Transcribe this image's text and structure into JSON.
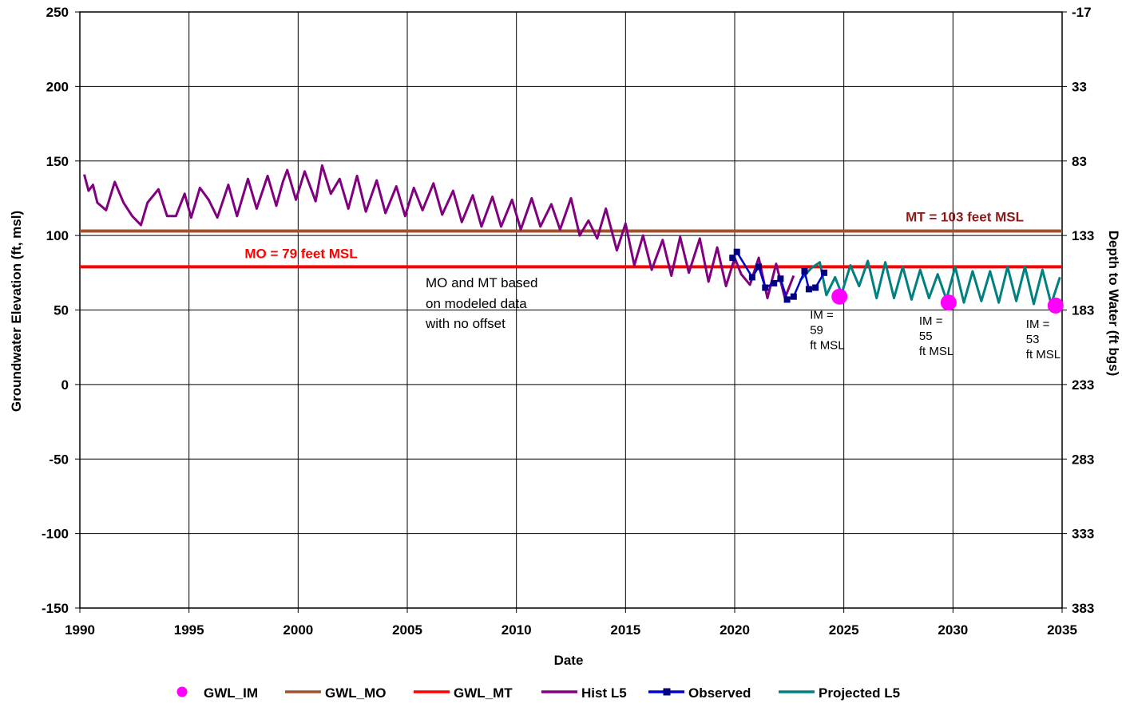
{
  "chart_data": {
    "type": "line",
    "xlabel": "Date",
    "ylabel": "Groundwater Elevation (ft, msl)",
    "y2label": "Depth to Water (ft bgs)",
    "xlim": [
      1990,
      2035
    ],
    "ylim": [
      -150,
      250
    ],
    "x_ticks": [
      "1990",
      "1995",
      "2000",
      "2005",
      "2010",
      "2015",
      "2020",
      "2025",
      "2030",
      "2035"
    ],
    "y_ticks": [
      "250",
      "200",
      "150",
      "100",
      "50",
      "0",
      "-50",
      "-100",
      "-150"
    ],
    "y2_ticks": [
      "-17",
      "33",
      "83",
      "133",
      "183",
      "233",
      "283",
      "333",
      "383"
    ],
    "grid": true,
    "legend_position": "bottom",
    "reference_lines": {
      "mt": {
        "name": "GWL_MT",
        "value": 103,
        "label": "MT = 103 feet MSL",
        "line_color": "#a0522d",
        "label_color": "#8b1a1a"
      },
      "mo": {
        "name": "GWL_MO",
        "value": 79,
        "label": "MO = 79 feet MSL",
        "line_color": "#ff0000",
        "label_color": "#ff0000"
      }
    },
    "annotation": {
      "lines": [
        "MO and MT based",
        "on modeled data",
        "with no offset"
      ]
    },
    "series": [
      {
        "name": "Hist L5",
        "color": "#800080",
        "points": [
          [
            1990.2,
            141
          ],
          [
            1990.4,
            130
          ],
          [
            1990.6,
            134
          ],
          [
            1990.8,
            122
          ],
          [
            1991.2,
            117
          ],
          [
            1991.6,
            136
          ],
          [
            1992.0,
            122
          ],
          [
            1992.4,
            113
          ],
          [
            1992.8,
            107
          ],
          [
            1993.1,
            122
          ],
          [
            1993.6,
            131
          ],
          [
            1994.0,
            113
          ],
          [
            1994.4,
            113
          ],
          [
            1994.8,
            128
          ],
          [
            1995.1,
            112
          ],
          [
            1995.5,
            132
          ],
          [
            1995.9,
            124
          ],
          [
            1996.3,
            112
          ],
          [
            1996.8,
            134
          ],
          [
            1997.2,
            113
          ],
          [
            1997.7,
            138
          ],
          [
            1998.1,
            118
          ],
          [
            1998.6,
            140
          ],
          [
            1999.0,
            120
          ],
          [
            1999.3,
            136
          ],
          [
            1999.5,
            144
          ],
          [
            1999.9,
            124
          ],
          [
            2000.3,
            143
          ],
          [
            2000.8,
            123
          ],
          [
            2001.1,
            147
          ],
          [
            2001.5,
            128
          ],
          [
            2001.9,
            138
          ],
          [
            2002.3,
            118
          ],
          [
            2002.7,
            140
          ],
          [
            2003.1,
            116
          ],
          [
            2003.6,
            137
          ],
          [
            2004.0,
            115
          ],
          [
            2004.5,
            133
          ],
          [
            2004.9,
            113
          ],
          [
            2005.3,
            132
          ],
          [
            2005.7,
            117
          ],
          [
            2006.2,
            135
          ],
          [
            2006.6,
            114
          ],
          [
            2007.1,
            130
          ],
          [
            2007.5,
            109
          ],
          [
            2008.0,
            127
          ],
          [
            2008.4,
            106
          ],
          [
            2008.9,
            126
          ],
          [
            2009.3,
            106
          ],
          [
            2009.8,
            124
          ],
          [
            2010.2,
            104
          ],
          [
            2010.7,
            125
          ],
          [
            2011.1,
            106
          ],
          [
            2011.6,
            121
          ],
          [
            2012.0,
            104
          ],
          [
            2012.5,
            125
          ],
          [
            2012.9,
            100
          ],
          [
            2013.3,
            110
          ],
          [
            2013.7,
            98
          ],
          [
            2014.1,
            118
          ],
          [
            2014.6,
            90
          ],
          [
            2015.0,
            108
          ],
          [
            2015.4,
            80
          ],
          [
            2015.8,
            100
          ],
          [
            2016.2,
            77
          ],
          [
            2016.7,
            97
          ],
          [
            2017.1,
            73
          ],
          [
            2017.5,
            99
          ],
          [
            2017.9,
            75
          ],
          [
            2018.4,
            98
          ],
          [
            2018.8,
            69
          ],
          [
            2019.2,
            92
          ],
          [
            2019.6,
            66
          ],
          [
            2020.0,
            85
          ],
          [
            2020.3,
            74
          ],
          [
            2020.7,
            67
          ],
          [
            2021.1,
            85
          ],
          [
            2021.5,
            58
          ],
          [
            2021.9,
            81
          ],
          [
            2022.3,
            58
          ],
          [
            2022.7,
            73
          ]
        ]
      },
      {
        "name": "Observed",
        "color": "#0000cd",
        "points": [
          [
            2019.9,
            85
          ],
          [
            2020.1,
            89
          ],
          [
            2020.8,
            72
          ],
          [
            2021.1,
            79
          ],
          [
            2021.4,
            65
          ],
          [
            2021.8,
            68
          ],
          [
            2022.1,
            71
          ],
          [
            2022.4,
            57
          ],
          [
            2022.7,
            59
          ],
          [
            2023.2,
            76
          ],
          [
            2023.4,
            64
          ],
          [
            2023.7,
            65
          ],
          [
            2024.1,
            75
          ]
        ]
      },
      {
        "name": "Projected L5",
        "color": "#008080",
        "points": [
          [
            2023.0,
            70
          ],
          [
            2023.5,
            78
          ],
          [
            2023.9,
            82
          ],
          [
            2024.2,
            60
          ],
          [
            2024.6,
            72
          ],
          [
            2024.9,
            61
          ],
          [
            2025.3,
            80
          ],
          [
            2025.7,
            66
          ],
          [
            2026.1,
            83
          ],
          [
            2026.5,
            58
          ],
          [
            2026.9,
            82
          ],
          [
            2027.3,
            58
          ],
          [
            2027.7,
            79
          ],
          [
            2028.1,
            57
          ],
          [
            2028.5,
            77
          ],
          [
            2028.9,
            58
          ],
          [
            2029.3,
            74
          ],
          [
            2029.7,
            57
          ],
          [
            2030.1,
            79
          ],
          [
            2030.5,
            55
          ],
          [
            2030.9,
            76
          ],
          [
            2031.3,
            56
          ],
          [
            2031.7,
            76
          ],
          [
            2032.1,
            55
          ],
          [
            2032.5,
            79
          ],
          [
            2032.9,
            56
          ],
          [
            2033.3,
            79
          ],
          [
            2033.7,
            54
          ],
          [
            2034.1,
            77
          ],
          [
            2034.5,
            54
          ],
          [
            2034.9,
            72
          ]
        ]
      },
      {
        "name": "GWL_IM",
        "color": "#ff00ff",
        "points": [
          [
            2024.8,
            59
          ],
          [
            2029.8,
            55
          ],
          [
            2034.7,
            53
          ]
        ],
        "labels": [
          [
            "IM =",
            "59",
            "ft MSL"
          ],
          [
            "IM =",
            "55",
            "ft MSL"
          ],
          [
            "IM =",
            "53",
            "ft MSL"
          ]
        ]
      }
    ],
    "legend": [
      "GWL_IM",
      "GWL_MO",
      "GWL_MT",
      "Hist L5",
      "Observed",
      "Projected L5"
    ]
  }
}
